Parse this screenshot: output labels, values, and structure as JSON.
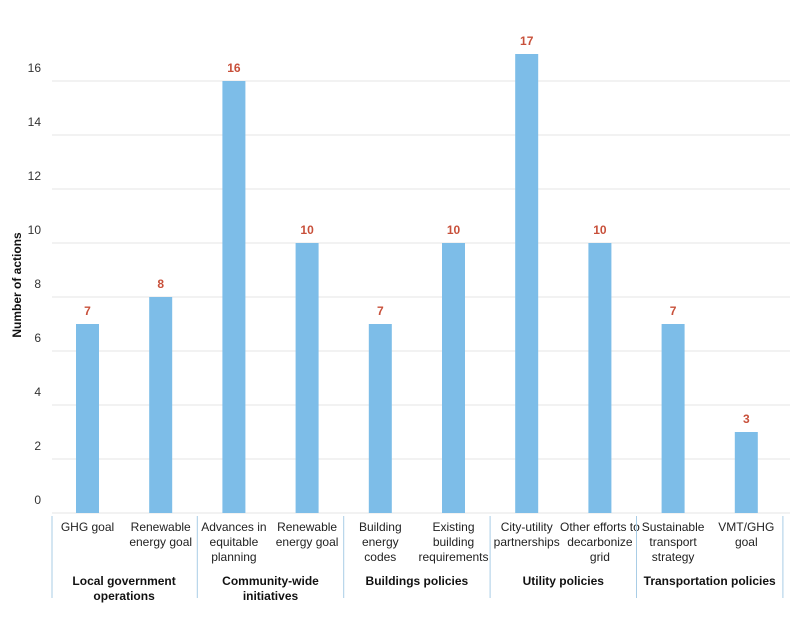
{
  "chart_data": {
    "type": "bar",
    "ylabel": "Number of actions",
    "ylim": [
      0,
      17
    ],
    "yticks": [
      0,
      2,
      4,
      6,
      8,
      10,
      12,
      14,
      16
    ],
    "grid": true,
    "categories": [
      [
        "GHG goal"
      ],
      [
        "Renewable",
        "energy goal"
      ],
      [
        "Advances in",
        "equitable",
        "planning"
      ],
      [
        "Renewable",
        "energy goal"
      ],
      [
        "Building",
        "energy",
        "codes"
      ],
      [
        "Existing",
        "building",
        "requirements"
      ],
      [
        "City-utility",
        "partnerships"
      ],
      [
        "Other efforts to",
        "decarbonize",
        "grid"
      ],
      [
        "Sustainable",
        "transport",
        "strategy"
      ],
      [
        "VMT/GHG",
        "goal"
      ]
    ],
    "values": [
      7,
      8,
      16,
      10,
      7,
      10,
      17,
      10,
      7,
      3
    ],
    "groups": [
      {
        "label": [
          "Local government",
          "operations"
        ],
        "count": 2
      },
      {
        "label": [
          "Community-wide",
          "initiatives"
        ],
        "count": 2
      },
      {
        "label": [
          "Buildings policies"
        ],
        "count": 2
      },
      {
        "label": [
          "Utility policies"
        ],
        "count": 2
      },
      {
        "label": [
          "Transportation policies"
        ],
        "count": 2
      }
    ],
    "colors": {
      "bar": "#7dbde8",
      "data_label": "#c8503a",
      "grid": "#e6e6e6",
      "separator": "#a9cde6"
    }
  }
}
